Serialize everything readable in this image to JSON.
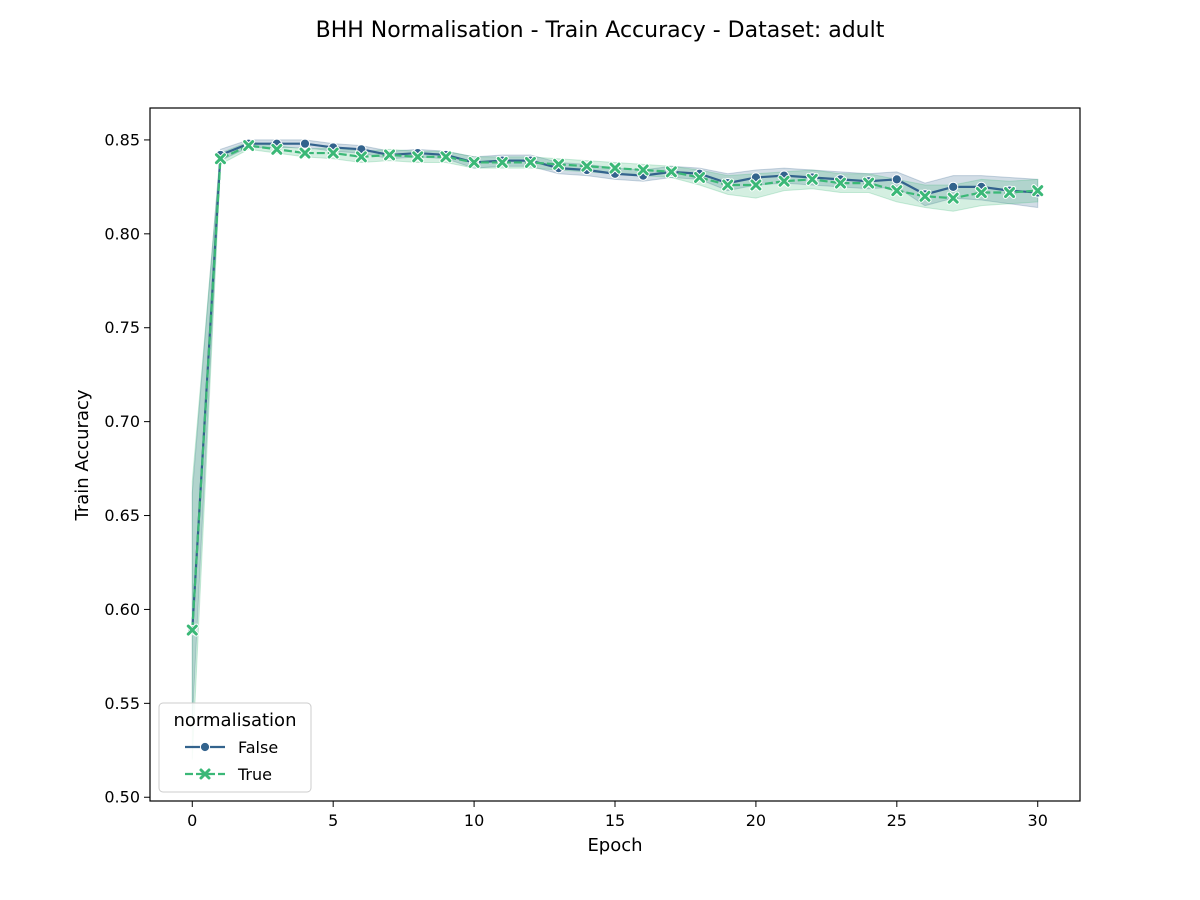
{
  "chart_data": {
    "type": "line",
    "title": "BHH Normalisation - Train Accuracy - Dataset: adult",
    "xlabel": "Epoch",
    "ylabel": "Train Accuracy",
    "xlim": [
      -1.5,
      31.5
    ],
    "ylim": [
      0.498,
      0.867
    ],
    "xticks": [
      0,
      5,
      10,
      15,
      20,
      25,
      30
    ],
    "xtick_labels": [
      "0",
      "5",
      "10",
      "15",
      "20",
      "25",
      "30"
    ],
    "yticks": [
      0.5,
      0.55,
      0.6,
      0.65,
      0.7,
      0.75,
      0.8,
      0.85
    ],
    "ytick_labels": [
      "0.50",
      "0.55",
      "0.60",
      "0.65",
      "0.70",
      "0.75",
      "0.80",
      "0.85"
    ],
    "grid": false,
    "legend": {
      "title": "normalisation",
      "position": "lower-left"
    },
    "x": [
      0,
      1,
      2,
      3,
      4,
      5,
      6,
      7,
      8,
      9,
      10,
      11,
      12,
      13,
      14,
      15,
      16,
      17,
      18,
      19,
      20,
      21,
      22,
      23,
      24,
      25,
      26,
      27,
      28,
      29,
      30
    ],
    "series": [
      {
        "name": "False",
        "color": "#33638d",
        "marker": "circle",
        "dash": "solid",
        "values": [
          0.589,
          0.842,
          0.848,
          0.848,
          0.848,
          0.846,
          0.845,
          0.842,
          0.843,
          0.842,
          0.838,
          0.839,
          0.839,
          0.835,
          0.834,
          0.832,
          0.831,
          0.833,
          0.832,
          0.827,
          0.83,
          0.831,
          0.83,
          0.829,
          0.828,
          0.829,
          0.821,
          0.825,
          0.825,
          0.823,
          0.822
        ],
        "lower": [
          0.54,
          0.839,
          0.846,
          0.846,
          0.846,
          0.844,
          0.843,
          0.84,
          0.841,
          0.84,
          0.835,
          0.836,
          0.836,
          0.832,
          0.831,
          0.829,
          0.828,
          0.83,
          0.829,
          0.823,
          0.826,
          0.827,
          0.826,
          0.825,
          0.824,
          0.825,
          0.815,
          0.819,
          0.818,
          0.816,
          0.814
        ],
        "upper": [
          0.662,
          0.845,
          0.85,
          0.85,
          0.85,
          0.848,
          0.847,
          0.844,
          0.845,
          0.844,
          0.841,
          0.842,
          0.842,
          0.838,
          0.837,
          0.835,
          0.834,
          0.836,
          0.835,
          0.832,
          0.834,
          0.835,
          0.834,
          0.833,
          0.832,
          0.833,
          0.827,
          0.831,
          0.831,
          0.83,
          0.829
        ]
      },
      {
        "name": "True",
        "color": "#3bb877",
        "marker": "x",
        "dash": "dashed",
        "values": [
          0.589,
          0.84,
          0.847,
          0.845,
          0.843,
          0.843,
          0.841,
          0.842,
          0.841,
          0.841,
          0.838,
          0.838,
          0.838,
          0.837,
          0.836,
          0.835,
          0.834,
          0.833,
          0.83,
          0.826,
          0.826,
          0.828,
          0.829,
          0.827,
          0.827,
          0.823,
          0.82,
          0.819,
          0.822,
          0.822,
          0.823
        ],
        "lower": [
          0.52,
          0.837,
          0.845,
          0.843,
          0.841,
          0.84,
          0.838,
          0.839,
          0.838,
          0.838,
          0.835,
          0.835,
          0.835,
          0.834,
          0.833,
          0.832,
          0.831,
          0.83,
          0.826,
          0.821,
          0.819,
          0.823,
          0.824,
          0.822,
          0.822,
          0.817,
          0.814,
          0.812,
          0.815,
          0.816,
          0.817
        ],
        "upper": [
          0.668,
          0.843,
          0.849,
          0.847,
          0.845,
          0.846,
          0.844,
          0.845,
          0.844,
          0.844,
          0.841,
          0.841,
          0.841,
          0.84,
          0.839,
          0.838,
          0.837,
          0.836,
          0.834,
          0.831,
          0.832,
          0.833,
          0.834,
          0.832,
          0.832,
          0.829,
          0.826,
          0.826,
          0.829,
          0.828,
          0.829
        ]
      }
    ]
  }
}
